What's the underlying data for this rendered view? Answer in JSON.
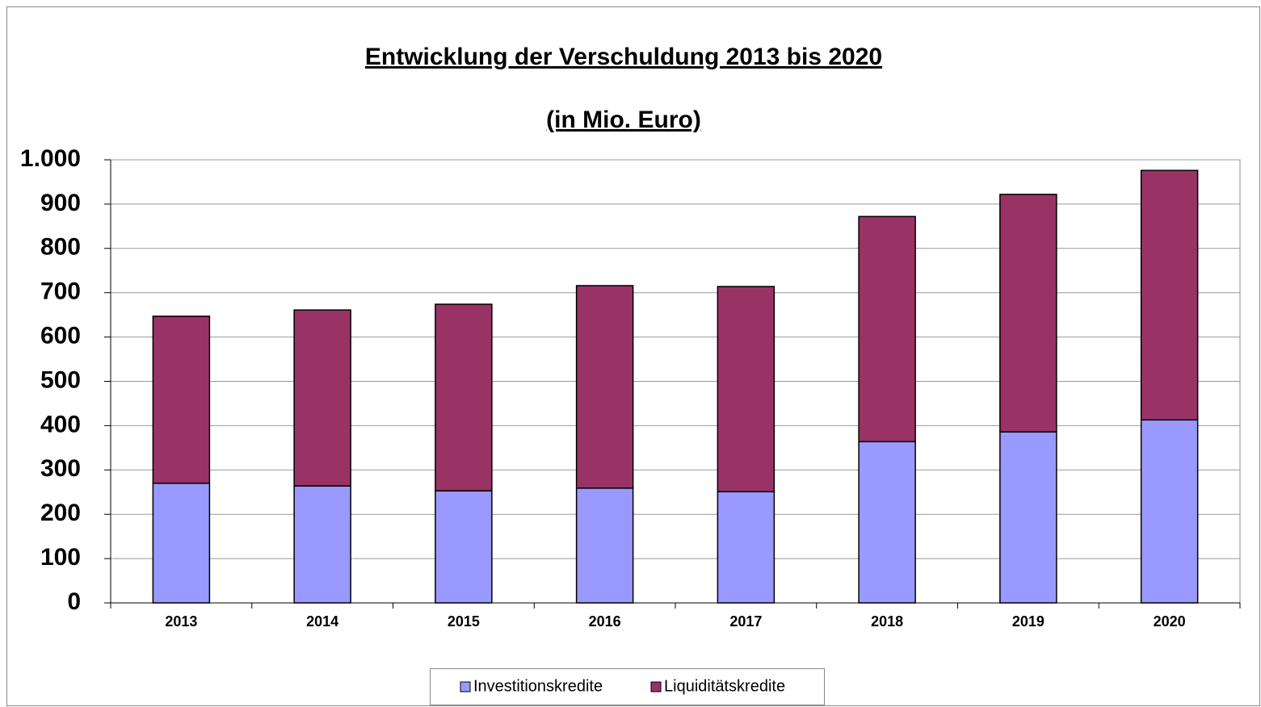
{
  "chart_data": {
    "type": "stacked-bar",
    "title": "Entwicklung der Verschuldung 2013 bis 2020",
    "subtitle": "(in Mio. Euro)",
    "categories": [
      "2013",
      "2014",
      "2015",
      "2016",
      "2017",
      "2018",
      "2019",
      "2020"
    ],
    "series": [
      {
        "name": "Investitionskredite",
        "color": "#9999ff",
        "values": [
          270,
          264,
          253,
          259,
          251,
          364,
          386,
          413
        ]
      },
      {
        "name": "Liquiditätskredite",
        "color": "#993366",
        "values": [
          377,
          397,
          421,
          457,
          463,
          508,
          536,
          563
        ]
      }
    ],
    "ylim": [
      0,
      1000
    ],
    "yticks": [
      0,
      100,
      200,
      300,
      400,
      500,
      600,
      700,
      800,
      900,
      {
        "value": 1000,
        "label": "1.000"
      }
    ],
    "grid": true,
    "legend": "bottom"
  }
}
